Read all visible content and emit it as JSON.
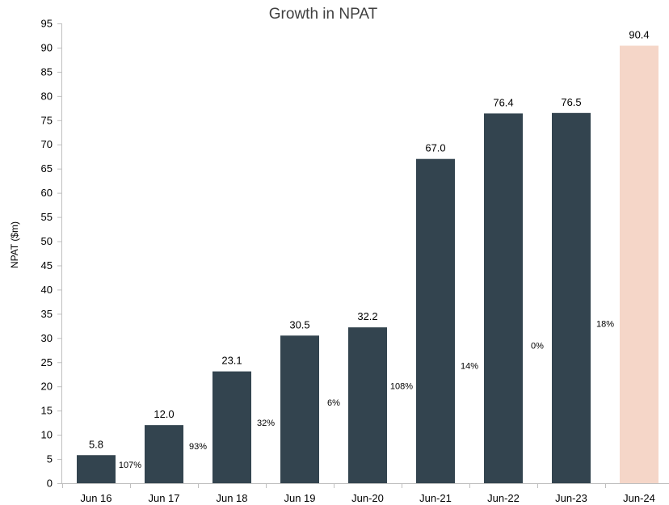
{
  "chart_data": {
    "type": "bar",
    "title": "Growth in NPAT",
    "ylabel": "NPAT ($m)",
    "xlabel": "",
    "ylim": [
      0,
      95
    ],
    "ytick_step": 5,
    "categories": [
      "Jun 16",
      "Jun 17",
      "Jun 18",
      "Jun 19",
      "Jun-20",
      "Jun-21",
      "Jun-22",
      "Jun-23",
      "Jun-24"
    ],
    "values": [
      5.8,
      12.0,
      23.1,
      30.5,
      32.2,
      67.0,
      76.4,
      76.5,
      90.4
    ],
    "value_labels": [
      "5.8",
      "12.0",
      "23.1",
      "30.5",
      "32.2",
      "67.0",
      "76.4",
      "76.5",
      "90.4"
    ],
    "growth_labels": [
      "107%",
      "93%",
      "32%",
      "6%",
      "108%",
      "14%",
      "0%",
      "18%"
    ],
    "growth_label_y": [
      3.8,
      7.7,
      12.5,
      16.7,
      20.1,
      24.3,
      28.5,
      33.0
    ],
    "colors": [
      "#33444f",
      "#33444f",
      "#33444f",
      "#33444f",
      "#33444f",
      "#33444f",
      "#33444f",
      "#33444f",
      "#f5d6c8"
    ],
    "grid": false,
    "legend": "none"
  }
}
